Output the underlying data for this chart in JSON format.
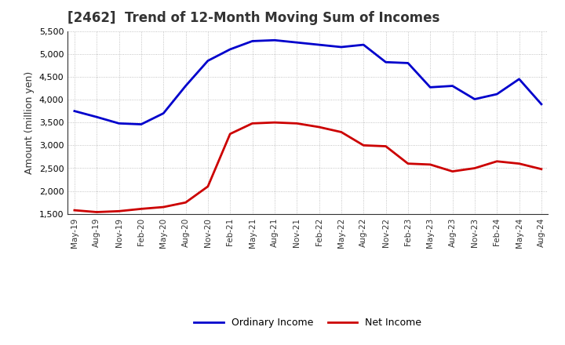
{
  "title": "[2462]  Trend of 12-Month Moving Sum of Incomes",
  "ylabel": "Amount (million yen)",
  "ylim": [
    1500,
    5500
  ],
  "yticks": [
    1500,
    2000,
    2500,
    3000,
    3500,
    4000,
    4500,
    5000,
    5500
  ],
  "background_color": "#ffffff",
  "grid_color": "#aaaaaa",
  "labels": [
    "May-19",
    "Aug-19",
    "Nov-19",
    "Feb-20",
    "May-20",
    "Aug-20",
    "Nov-20",
    "Feb-21",
    "May-21",
    "Aug-21",
    "Nov-21",
    "Feb-22",
    "May-22",
    "Aug-22",
    "Nov-22",
    "Feb-23",
    "May-23",
    "Aug-23",
    "Nov-23",
    "Feb-24",
    "May-24",
    "Aug-24"
  ],
  "ordinary_income": [
    3750,
    3620,
    3480,
    3460,
    3700,
    4300,
    4850,
    5100,
    5280,
    5300,
    5250,
    5200,
    5150,
    5200,
    4820,
    4800,
    4270,
    4300,
    4010,
    4120,
    4450,
    3900
  ],
  "net_income": [
    1580,
    1540,
    1560,
    1610,
    1650,
    1750,
    2100,
    3250,
    3480,
    3500,
    3480,
    3400,
    3290,
    3000,
    2980,
    2600,
    2580,
    2430,
    2500,
    2650,
    2600,
    2480
  ],
  "ordinary_color": "#0000cc",
  "net_color": "#cc0000",
  "line_width": 2.0,
  "legend_ordinary": "Ordinary Income",
  "legend_net": "Net Income"
}
